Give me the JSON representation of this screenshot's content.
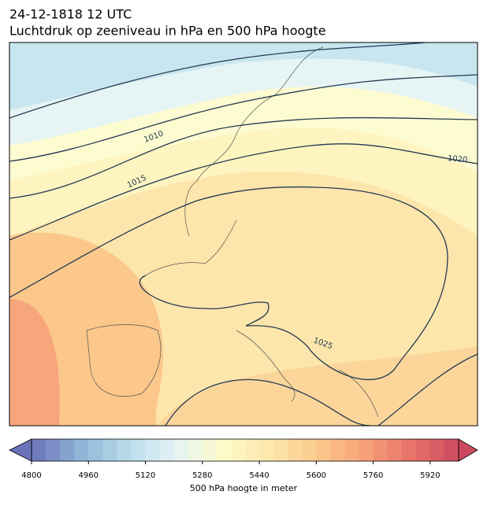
{
  "header": {
    "date": "24-12-1818 12 UTC",
    "title": "Luchtdruk op zeeniveau in hPa en 500 hPa hoogte"
  },
  "map": {
    "isobar_labels": [
      1010,
      1015,
      1020,
      1025
    ]
  },
  "colorbar": {
    "label": "500 hPa hoogte in meter",
    "vmin": 4800,
    "vmax": 6000,
    "step": 40,
    "ticks": [
      4800,
      4960,
      5120,
      5280,
      5440,
      5600,
      5760,
      5920
    ],
    "colors": [
      "#6a72b8",
      "#8fb3d6",
      "#b7dbea",
      "#e3f3f6",
      "#fdfbcb",
      "#fde7ac",
      "#fbc98c",
      "#f6a279",
      "#e7726a",
      "#cc4a5f"
    ]
  }
}
